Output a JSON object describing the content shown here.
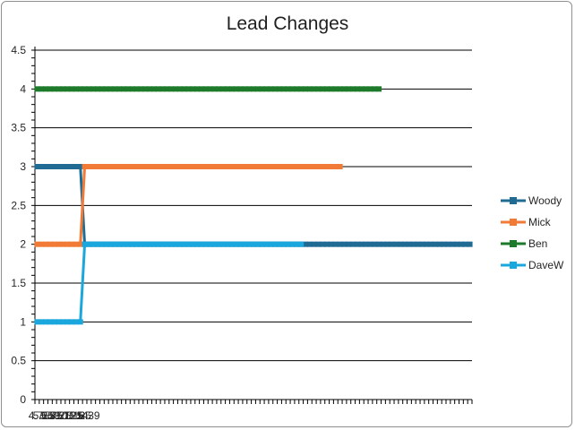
{
  "chart_data": {
    "type": "line",
    "title": "Lead Changes",
    "xlabel": "",
    "ylabel": "",
    "ylim": [
      0,
      4.5
    ],
    "y_ticks": [
      0,
      0.5,
      1,
      1.5,
      2,
      2.5,
      3,
      3.5,
      4,
      4.5
    ],
    "y_tick_labels": [
      "0",
      "0.5",
      "1",
      "1.5",
      "2",
      "2.5",
      "3",
      "3.5",
      "4",
      "4.5"
    ],
    "x_tick_labels": [
      "4.75",
      "5.25",
      "5.5",
      "6.75",
      "7.5",
      "8.25",
      "9.75",
      "10.25",
      "11.5",
      "12.25",
      "14",
      "16.39"
    ],
    "grid": "horizontal",
    "legend_position": "right",
    "series": [
      {
        "name": "Woody",
        "color": "#1f6b94",
        "values": [
          3,
          3,
          3,
          3,
          3,
          3,
          3,
          3,
          3,
          3,
          3,
          2,
          2,
          2,
          2,
          2,
          2,
          2,
          2,
          2,
          2,
          2,
          2,
          2,
          2,
          2,
          2,
          2,
          2,
          2,
          2,
          2,
          2,
          2,
          2,
          2,
          2,
          2,
          2,
          2,
          2,
          2,
          2,
          2,
          2,
          2,
          2,
          2,
          2,
          2,
          2,
          2,
          2,
          2,
          2,
          2,
          2,
          2,
          2,
          2,
          2,
          2,
          2,
          2,
          2,
          2,
          2,
          2,
          2,
          2,
          2,
          2,
          2,
          2,
          2,
          2,
          2,
          2,
          2,
          2,
          2,
          2,
          2,
          2,
          2,
          2,
          2,
          2,
          2,
          2,
          2,
          2,
          2,
          2,
          2,
          2,
          2,
          2,
          2,
          2,
          2
        ]
      },
      {
        "name": "Mick",
        "color": "#f07a36",
        "values": [
          2,
          2,
          2,
          2,
          2,
          2,
          2,
          2,
          2,
          2,
          2,
          3,
          3,
          3,
          3,
          3,
          3,
          3,
          3,
          3,
          3,
          3,
          3,
          3,
          3,
          3,
          3,
          3,
          3,
          3,
          3,
          3,
          3,
          3,
          3,
          3,
          3,
          3,
          3,
          3,
          3,
          3,
          3,
          3,
          3,
          3,
          3,
          3,
          3,
          3,
          3,
          3,
          3,
          3,
          3,
          3,
          3,
          3,
          3,
          3,
          3,
          3,
          3,
          3,
          3,
          3,
          3,
          3,
          3,
          3,
          3
        ]
      },
      {
        "name": "Ben",
        "color": "#1d7a2b",
        "values": [
          4,
          4,
          4,
          4,
          4,
          4,
          4,
          4,
          4,
          4,
          4,
          4,
          4,
          4,
          4,
          4,
          4,
          4,
          4,
          4,
          4,
          4,
          4,
          4,
          4,
          4,
          4,
          4,
          4,
          4,
          4,
          4,
          4,
          4,
          4,
          4,
          4,
          4,
          4,
          4,
          4,
          4,
          4,
          4,
          4,
          4,
          4,
          4,
          4,
          4,
          4,
          4,
          4,
          4,
          4,
          4,
          4,
          4,
          4,
          4,
          4,
          4,
          4,
          4,
          4,
          4,
          4,
          4,
          4,
          4,
          4,
          4,
          4,
          4,
          4,
          4,
          4,
          4,
          4,
          4
        ]
      },
      {
        "name": "DaveW",
        "color": "#1aa7dd",
        "values": [
          1,
          1,
          1,
          1,
          1,
          1,
          1,
          1,
          1,
          1,
          1,
          2,
          2,
          2,
          2,
          2,
          2,
          2,
          2,
          2,
          2,
          2,
          2,
          2,
          2,
          2,
          2,
          2,
          2,
          2,
          2,
          2,
          2,
          2,
          2,
          2,
          2,
          2,
          2,
          2,
          2,
          2,
          2,
          2,
          2,
          2,
          2,
          2,
          2,
          2,
          2,
          2,
          2,
          2,
          2,
          2,
          2,
          2,
          2,
          2,
          2,
          2
        ]
      }
    ]
  }
}
